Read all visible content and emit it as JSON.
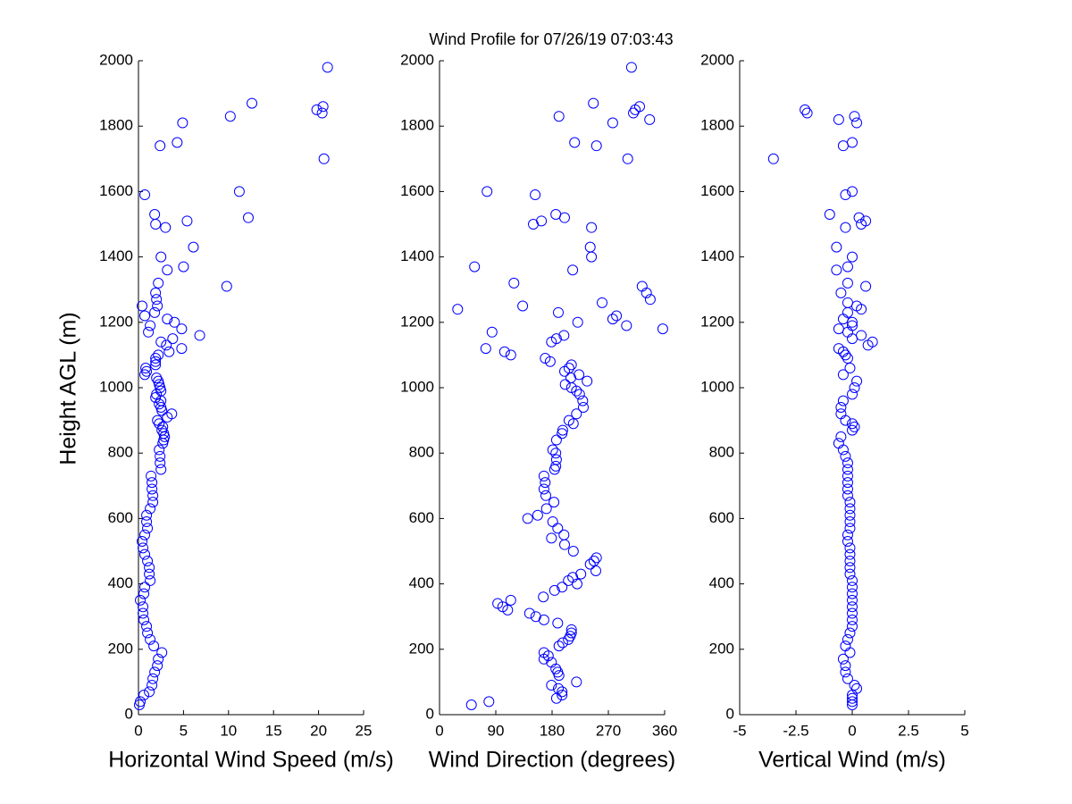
{
  "title": "Wind Profile for  07/26/19 07:03:43",
  "chart_data": [
    {
      "type": "scatter",
      "xlabel": "Horizontal Wind Speed (m/s)",
      "ylabel": "Height AGL (m)",
      "color": "#0000ff",
      "xlim": [
        0,
        25
      ],
      "xticks": [
        0,
        5,
        10,
        15,
        20,
        25
      ],
      "ylim": [
        0,
        2000
      ],
      "yticks": [
        0,
        200,
        400,
        600,
        800,
        1000,
        1200,
        1400,
        1600,
        1800,
        2000
      ],
      "x": [
        21.0,
        20.5,
        19.8,
        20.4,
        12.6,
        10.2,
        4.9,
        4.3,
        2.4,
        20.6,
        0.7,
        11.2,
        1.8,
        12.2,
        5.4,
        1.9,
        3.0,
        6.1,
        2.5,
        5.0,
        3.2,
        2.2,
        9.8,
        1.9,
        2.0,
        2.1,
        0.4,
        1.8,
        0.7,
        3.2,
        4.0,
        1.3,
        4.8,
        1.1,
        6.8,
        3.8,
        2.5,
        3.1,
        4.8,
        3.4,
        2.2,
        1.9,
        1.9,
        1.9,
        0.8,
        0.9,
        0.7,
        2.0,
        2.2,
        2.3,
        2.4,
        2.5,
        2.0,
        1.9,
        2.5,
        2.3,
        2.5,
        2.6,
        3.7,
        3.2,
        2.1,
        2.3,
        2.7,
        2.6,
        2.8,
        2.9,
        2.8,
        2.7,
        2.3,
        2.4,
        2.4,
        2.5,
        1.4,
        1.5,
        1.5,
        1.6,
        1.6,
        1.3,
        0.9,
        0.9,
        1.0,
        0.7,
        0.4,
        0.5,
        0.7,
        1.0,
        1.2,
        1.2,
        1.3,
        0.7,
        0.6,
        0.2,
        0.5,
        0.5,
        0.6,
        0.9,
        1.0,
        1.3,
        1.7,
        2.6,
        2.2,
        2.1,
        1.8,
        1.6,
        1.5,
        1.2,
        0.6,
        0.2,
        0.1
      ],
      "y": [
        1980,
        1860,
        1850,
        1840,
        1870,
        1830,
        1810,
        1750,
        1740,
        1700,
        1590,
        1600,
        1530,
        1520,
        1510,
        1500,
        1490,
        1430,
        1400,
        1370,
        1360,
        1320,
        1310,
        1290,
        1270,
        1250,
        1250,
        1230,
        1220,
        1210,
        1200,
        1190,
        1180,
        1170,
        1160,
        1150,
        1140,
        1130,
        1120,
        1110,
        1100,
        1090,
        1080,
        1070,
        1060,
        1050,
        1040,
        1030,
        1020,
        1010,
        1000,
        990,
        980,
        970,
        960,
        950,
        940,
        930,
        920,
        910,
        900,
        890,
        880,
        870,
        860,
        850,
        840,
        830,
        810,
        790,
        770,
        750,
        730,
        710,
        690,
        670,
        650,
        630,
        610,
        590,
        570,
        550,
        530,
        510,
        490,
        470,
        450,
        430,
        410,
        390,
        370,
        350,
        330,
        310,
        290,
        270,
        250,
        230,
        210,
        190,
        170,
        150,
        130,
        110,
        90,
        70,
        60,
        40,
        30
      ]
    },
    {
      "type": "scatter",
      "xlabel": "Wind Direction (degrees)",
      "color": "#0000ff",
      "xlim": [
        0,
        360
      ],
      "xticks": [
        0,
        90,
        180,
        270,
        360
      ],
      "ylim": [
        0,
        2000
      ],
      "yticks": [
        0,
        200,
        400,
        600,
        800,
        1000,
        1200,
        1400,
        1600,
        1800,
        2000
      ],
      "x": [
        307,
        246,
        191,
        336,
        277,
        320,
        310,
        313,
        216,
        251,
        301,
        76,
        153,
        186,
        200,
        163,
        150,
        243,
        241,
        243,
        56,
        213,
        119,
        324,
        331,
        337,
        260,
        133,
        29,
        190,
        283,
        277,
        221,
        299,
        357,
        84,
        199,
        187,
        179,
        74,
        104,
        114,
        169,
        177,
        211,
        207,
        200,
        223,
        210,
        236,
        201,
        211,
        219,
        224,
        229,
        230,
        219,
        207,
        214,
        197,
        196,
        187,
        181,
        186,
        187,
        186,
        184,
        167,
        169,
        167,
        170,
        183,
        171,
        157,
        141,
        181,
        189,
        199,
        179,
        200,
        214,
        251,
        247,
        241,
        250,
        226,
        213,
        206,
        220,
        196,
        184,
        166,
        114,
        93,
        101,
        109,
        144,
        154,
        167,
        189,
        211,
        211,
        209,
        206,
        197,
        191,
        167,
        174,
        167,
        179,
        186,
        189,
        191,
        219,
        179,
        190,
        196,
        196,
        187,
        79,
        51
      ],
      "y": [
        1980,
        1870,
        1830,
        1820,
        1810,
        1860,
        1840,
        1850,
        1750,
        1740,
        1700,
        1600,
        1590,
        1530,
        1520,
        1510,
        1500,
        1490,
        1430,
        1400,
        1370,
        1360,
        1320,
        1310,
        1290,
        1270,
        1260,
        1250,
        1240,
        1230,
        1220,
        1210,
        1200,
        1190,
        1180,
        1170,
        1160,
        1150,
        1140,
        1120,
        1110,
        1100,
        1090,
        1080,
        1070,
        1060,
        1050,
        1040,
        1030,
        1020,
        1010,
        1000,
        990,
        980,
        960,
        940,
        920,
        900,
        890,
        870,
        860,
        840,
        810,
        800,
        780,
        760,
        750,
        730,
        710,
        690,
        670,
        650,
        630,
        610,
        600,
        590,
        570,
        550,
        540,
        520,
        500,
        480,
        470,
        460,
        440,
        430,
        420,
        410,
        400,
        390,
        380,
        360,
        350,
        340,
        330,
        320,
        310,
        300,
        290,
        280,
        260,
        250,
        240,
        230,
        220,
        210,
        190,
        180,
        170,
        160,
        140,
        130,
        120,
        100,
        90,
        80,
        70,
        60,
        50,
        40,
        30
      ]
    },
    {
      "type": "scatter",
      "xlabel": "Vertical Wind (m/s)",
      "color": "#0000ff",
      "xlim": [
        -5,
        5
      ],
      "xticks": [
        -5,
        -2.5,
        0,
        2.5,
        5
      ],
      "ylim": [
        0,
        2000
      ],
      "yticks": [
        0,
        200,
        400,
        600,
        800,
        1000,
        1200,
        1400,
        1600,
        1800,
        2000
      ],
      "x": [
        -2.1,
        -2.0,
        0.1,
        -0.6,
        0.2,
        0,
        -0.4,
        -3.5,
        0,
        -0.3,
        -1.0,
        0.3,
        0.6,
        0.4,
        -0.3,
        -0.7,
        0,
        -0.2,
        -0.7,
        -0.2,
        0.6,
        -0.5,
        -0.2,
        0.2,
        0.4,
        -0.2,
        -0.4,
        0,
        0,
        -0.6,
        -0.2,
        0.4,
        0,
        0.9,
        0.7,
        -0.6,
        -0.4,
        -0.3,
        -0.2,
        -0.1,
        -0.4,
        0.2,
        0.1,
        0,
        -0.4,
        -0.5,
        -0.5,
        -0.3,
        0,
        0.1,
        0,
        -0.5,
        -0.6,
        -0.4,
        -0.3,
        -0.2,
        -0.2,
        -0.2,
        -0.2,
        -0.2,
        -0.2,
        -0.1,
        -0.1,
        -0.1,
        -0.1,
        -0.1,
        -0.2,
        -0.2,
        -0.1,
        -0.1,
        -0.1,
        -0.1,
        -0.1,
        0,
        0,
        0,
        0,
        0,
        0,
        0,
        0,
        -0.1,
        -0.2,
        -0.3,
        -0.1,
        -0.4,
        -0.3,
        -0.3,
        -0.2,
        0.1,
        0.2,
        0,
        0,
        0,
        0
      ],
      "y": [
        1850,
        1840,
        1830,
        1820,
        1810,
        1750,
        1740,
        1700,
        1600,
        1590,
        1530,
        1520,
        1510,
        1500,
        1490,
        1430,
        1400,
        1370,
        1360,
        1320,
        1310,
        1290,
        1260,
        1250,
        1240,
        1230,
        1210,
        1200,
        1190,
        1180,
        1170,
        1160,
        1150,
        1140,
        1130,
        1120,
        1110,
        1100,
        1090,
        1060,
        1040,
        1020,
        1000,
        980,
        960,
        940,
        920,
        900,
        890,
        880,
        870,
        850,
        830,
        810,
        790,
        770,
        750,
        730,
        710,
        690,
        670,
        650,
        630,
        610,
        590,
        570,
        550,
        530,
        510,
        490,
        470,
        450,
        430,
        410,
        390,
        370,
        350,
        330,
        310,
        290,
        270,
        250,
        230,
        210,
        190,
        170,
        150,
        130,
        110,
        90,
        80,
        60,
        50,
        40,
        30
      ]
    }
  ]
}
